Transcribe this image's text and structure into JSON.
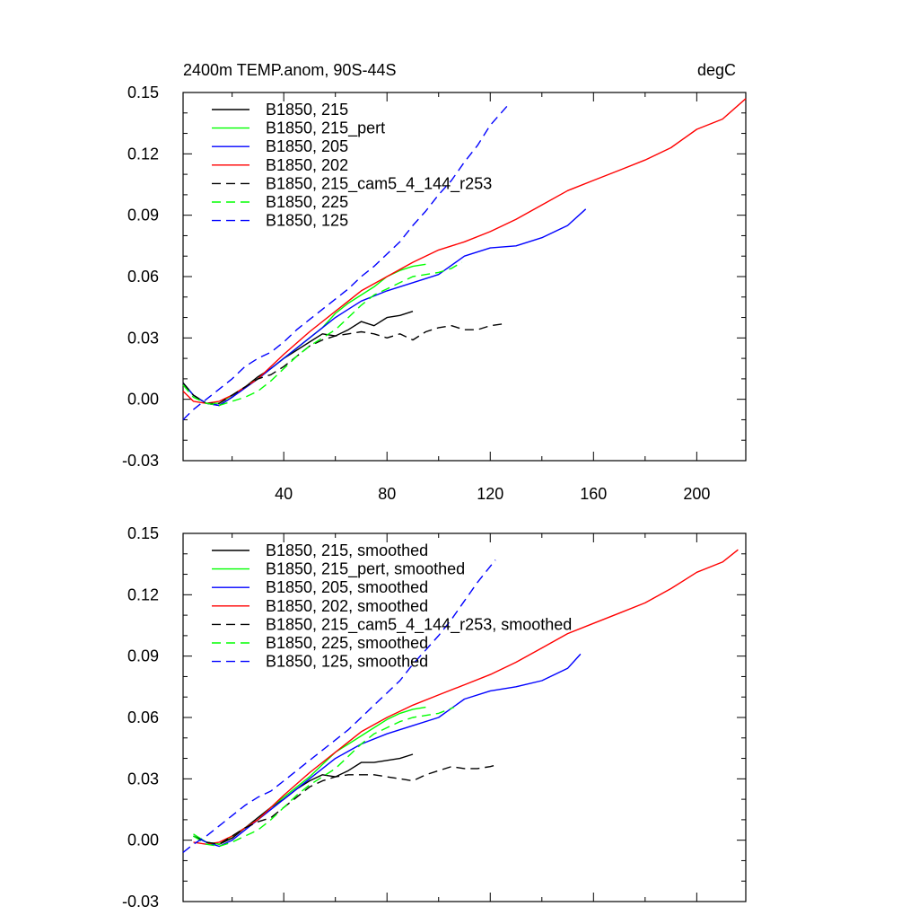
{
  "chart_data": [
    {
      "type": "line",
      "title": "2400m TEMP.anom, 90S-44S",
      "units": "degC",
      "xlim": [
        1,
        219
      ],
      "ylim": [
        -0.03,
        0.15
      ],
      "xticks": [
        40,
        80,
        120,
        160,
        200
      ],
      "yticks": [
        -0.03,
        0.0,
        0.03,
        0.06,
        0.09,
        0.12,
        0.15
      ],
      "ytick_labels": [
        "-0.03",
        "0.00",
        "0.03",
        "0.06",
        "0.09",
        "0.12",
        "0.15"
      ],
      "legend_position": "top-left",
      "grid": false,
      "series": [
        {
          "name": "B1850, 215",
          "color": "#000000",
          "dash": "solid",
          "x": [
            1,
            5,
            10,
            15,
            20,
            25,
            30,
            35,
            40,
            45,
            50,
            55,
            60,
            65,
            70,
            75,
            80,
            85,
            90
          ],
          "y": [
            0.008,
            0.002,
            -0.002,
            -0.003,
            0.001,
            0.006,
            0.011,
            0.015,
            0.02,
            0.024,
            0.028,
            0.032,
            0.031,
            0.034,
            0.038,
            0.036,
            0.04,
            0.041,
            0.043
          ]
        },
        {
          "name": "B1850, 215_pert",
          "color": "#00ff00",
          "dash": "solid",
          "x": [
            1,
            5,
            10,
            15,
            20,
            25,
            30,
            35,
            40,
            45,
            50,
            55,
            60,
            65,
            70,
            75,
            80,
            85,
            90,
            95
          ],
          "y": [
            0.008,
            0.002,
            -0.002,
            -0.002,
            0.002,
            0.006,
            0.01,
            0.015,
            0.02,
            0.025,
            0.03,
            0.035,
            0.042,
            0.047,
            0.051,
            0.055,
            0.06,
            0.063,
            0.065,
            0.066
          ]
        },
        {
          "name": "B1850, 205",
          "color": "#0000ff",
          "dash": "solid",
          "x": [
            1,
            5,
            10,
            15,
            20,
            30,
            40,
            50,
            60,
            70,
            80,
            90,
            100,
            110,
            120,
            130,
            140,
            150,
            157
          ],
          "y": [
            0.008,
            0.002,
            -0.002,
            -0.003,
            0.001,
            0.01,
            0.02,
            0.03,
            0.04,
            0.048,
            0.053,
            0.057,
            0.061,
            0.07,
            0.074,
            0.075,
            0.079,
            0.085,
            0.093
          ]
        },
        {
          "name": "B1850, 202",
          "color": "#ff0000",
          "dash": "solid",
          "x": [
            1,
            5,
            10,
            15,
            20,
            30,
            40,
            50,
            60,
            70,
            80,
            90,
            100,
            110,
            120,
            130,
            140,
            150,
            160,
            170,
            180,
            190,
            200,
            210,
            219
          ],
          "y": [
            0.004,
            -0.001,
            -0.002,
            -0.001,
            0.002,
            0.01,
            0.022,
            0.033,
            0.043,
            0.053,
            0.06,
            0.067,
            0.073,
            0.077,
            0.082,
            0.088,
            0.095,
            0.102,
            0.107,
            0.112,
            0.117,
            0.123,
            0.132,
            0.137,
            0.147
          ]
        },
        {
          "name": "B1850, 215_cam5_4_144_r253",
          "color": "#000000",
          "dash": "dashed",
          "x": [
            1,
            5,
            10,
            15,
            20,
            25,
            30,
            35,
            40,
            45,
            50,
            55,
            60,
            65,
            70,
            75,
            80,
            85,
            90,
            95,
            100,
            105,
            110,
            115,
            120,
            126
          ],
          "y": [
            0.008,
            0.002,
            -0.002,
            -0.002,
            0.002,
            0.006,
            0.01,
            0.012,
            0.016,
            0.021,
            0.026,
            0.029,
            0.031,
            0.032,
            0.033,
            0.032,
            0.03,
            0.032,
            0.029,
            0.033,
            0.035,
            0.036,
            0.034,
            0.034,
            0.036,
            0.037
          ]
        },
        {
          "name": "B1850, 225",
          "color": "#00ff00",
          "dash": "dashed",
          "x": [
            1,
            5,
            10,
            15,
            20,
            25,
            30,
            35,
            40,
            45,
            50,
            55,
            60,
            65,
            70,
            75,
            80,
            85,
            90,
            95,
            100,
            105,
            109
          ],
          "y": [
            0.007,
            0.001,
            -0.002,
            -0.003,
            -0.001,
            0.001,
            0.004,
            0.009,
            0.015,
            0.021,
            0.026,
            0.03,
            0.034,
            0.04,
            0.046,
            0.051,
            0.054,
            0.057,
            0.06,
            0.061,
            0.062,
            0.064,
            0.067
          ]
        },
        {
          "name": "B1850, 125",
          "color": "#0000ff",
          "dash": "dashed",
          "x": [
            1,
            5,
            10,
            15,
            20,
            25,
            30,
            35,
            40,
            45,
            50,
            55,
            60,
            65,
            70,
            75,
            80,
            85,
            90,
            95,
            100,
            105,
            110,
            115,
            120,
            127
          ],
          "y": [
            -0.01,
            -0.005,
            0.0,
            0.005,
            0.01,
            0.016,
            0.02,
            0.023,
            0.028,
            0.034,
            0.039,
            0.044,
            0.049,
            0.054,
            0.06,
            0.065,
            0.071,
            0.077,
            0.085,
            0.092,
            0.1,
            0.107,
            0.116,
            0.124,
            0.134,
            0.144
          ]
        }
      ]
    },
    {
      "type": "line",
      "title": "",
      "units": "",
      "xlim": [
        1,
        219
      ],
      "ylim": [
        -0.03,
        0.15
      ],
      "xticks": [
        40,
        80,
        120,
        160,
        200
      ],
      "yticks": [
        -0.03,
        0.0,
        0.03,
        0.06,
        0.09,
        0.12,
        0.15
      ],
      "ytick_labels": [
        "-0.03",
        "0.00",
        "0.03",
        "0.06",
        "0.09",
        "0.12",
        "0.15"
      ],
      "legend_position": "top-left",
      "grid": false,
      "series": [
        {
          "name": "B1850, 215, smoothed",
          "color": "#000000",
          "dash": "solid",
          "x": [
            5,
            10,
            15,
            20,
            25,
            30,
            35,
            40,
            45,
            50,
            55,
            60,
            65,
            70,
            75,
            80,
            85,
            90
          ],
          "y": [
            0.002,
            -0.001,
            -0.002,
            0.001,
            0.006,
            0.011,
            0.016,
            0.02,
            0.025,
            0.029,
            0.032,
            0.031,
            0.034,
            0.038,
            0.038,
            0.039,
            0.04,
            0.042
          ]
        },
        {
          "name": "B1850, 215_pert, smoothed",
          "color": "#00ff00",
          "dash": "solid",
          "x": [
            5,
            10,
            15,
            20,
            25,
            30,
            35,
            40,
            45,
            50,
            55,
            60,
            65,
            70,
            75,
            80,
            85,
            90,
            95
          ],
          "y": [
            0.003,
            -0.001,
            -0.002,
            0.002,
            0.006,
            0.01,
            0.016,
            0.021,
            0.026,
            0.031,
            0.037,
            0.043,
            0.047,
            0.051,
            0.055,
            0.059,
            0.062,
            0.064,
            0.065
          ]
        },
        {
          "name": "B1850, 205, smoothed",
          "color": "#0000ff",
          "dash": "solid",
          "x": [
            5,
            10,
            15,
            20,
            30,
            40,
            50,
            60,
            70,
            80,
            90,
            100,
            110,
            120,
            130,
            140,
            150,
            155
          ],
          "y": [
            0.002,
            -0.001,
            -0.003,
            0.0,
            0.01,
            0.02,
            0.03,
            0.04,
            0.047,
            0.052,
            0.056,
            0.06,
            0.069,
            0.073,
            0.075,
            0.078,
            0.084,
            0.091
          ]
        },
        {
          "name": "B1850, 202, smoothed",
          "color": "#ff0000",
          "dash": "solid",
          "x": [
            5,
            10,
            15,
            20,
            30,
            40,
            50,
            60,
            70,
            80,
            90,
            100,
            110,
            120,
            130,
            140,
            150,
            160,
            170,
            180,
            190,
            200,
            210,
            216
          ],
          "y": [
            -0.001,
            -0.002,
            -0.001,
            0.002,
            0.01,
            0.022,
            0.033,
            0.043,
            0.053,
            0.06,
            0.066,
            0.071,
            0.076,
            0.081,
            0.087,
            0.094,
            0.101,
            0.106,
            0.111,
            0.116,
            0.123,
            0.131,
            0.136,
            0.142
          ]
        },
        {
          "name": "B1850, 215_cam5_4_144_r253, smoothed",
          "color": "#000000",
          "dash": "dashed",
          "x": [
            5,
            10,
            15,
            20,
            25,
            30,
            35,
            40,
            45,
            50,
            55,
            60,
            65,
            70,
            75,
            80,
            85,
            90,
            95,
            100,
            105,
            110,
            115,
            120,
            123
          ],
          "y": [
            0.002,
            -0.001,
            -0.002,
            0.002,
            0.006,
            0.009,
            0.011,
            0.016,
            0.021,
            0.026,
            0.029,
            0.031,
            0.032,
            0.032,
            0.032,
            0.031,
            0.03,
            0.029,
            0.032,
            0.034,
            0.036,
            0.035,
            0.035,
            0.036,
            0.037
          ]
        },
        {
          "name": "B1850, 225, smoothed",
          "color": "#00ff00",
          "dash": "dashed",
          "x": [
            5,
            10,
            15,
            20,
            25,
            30,
            35,
            40,
            45,
            50,
            55,
            60,
            65,
            70,
            75,
            80,
            85,
            90,
            95,
            100,
            106
          ],
          "y": [
            0.002,
            -0.002,
            -0.003,
            -0.001,
            0.002,
            0.005,
            0.01,
            0.016,
            0.022,
            0.027,
            0.031,
            0.035,
            0.041,
            0.047,
            0.052,
            0.055,
            0.058,
            0.06,
            0.061,
            0.062,
            0.065
          ]
        },
        {
          "name": "B1850, 125, smoothed",
          "color": "#0000ff",
          "dash": "dashed",
          "x": [
            1,
            5,
            10,
            15,
            20,
            25,
            30,
            35,
            40,
            45,
            50,
            55,
            60,
            65,
            70,
            75,
            80,
            85,
            90,
            95,
            100,
            105,
            110,
            115,
            122
          ],
          "y": [
            -0.006,
            -0.002,
            0.002,
            0.007,
            0.012,
            0.017,
            0.021,
            0.024,
            0.029,
            0.034,
            0.039,
            0.044,
            0.049,
            0.054,
            0.06,
            0.066,
            0.072,
            0.078,
            0.086,
            0.093,
            0.1,
            0.108,
            0.117,
            0.126,
            0.137
          ]
        }
      ]
    }
  ]
}
